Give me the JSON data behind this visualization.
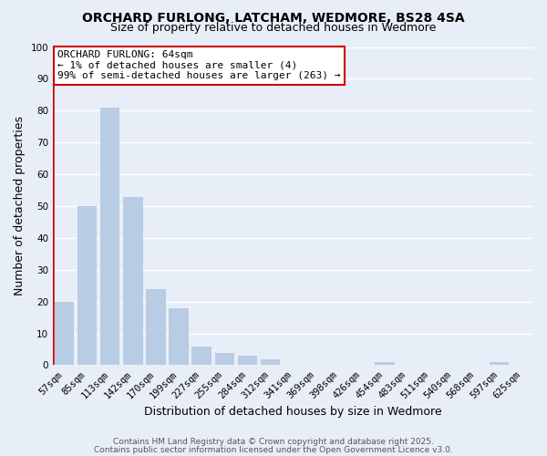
{
  "title": "ORCHARD FURLONG, LATCHAM, WEDMORE, BS28 4SA",
  "subtitle": "Size of property relative to detached houses in Wedmore",
  "xlabel": "Distribution of detached houses by size in Wedmore",
  "ylabel": "Number of detached properties",
  "categories": [
    "57sqm",
    "85sqm",
    "113sqm",
    "142sqm",
    "170sqm",
    "199sqm",
    "227sqm",
    "255sqm",
    "284sqm",
    "312sqm",
    "341sqm",
    "369sqm",
    "398sqm",
    "426sqm",
    "454sqm",
    "483sqm",
    "511sqm",
    "540sqm",
    "568sqm",
    "597sqm",
    "625sqm"
  ],
  "values": [
    20,
    50,
    81,
    53,
    24,
    18,
    6,
    4,
    3,
    2,
    0,
    0,
    0,
    0,
    1,
    0,
    0,
    0,
    0,
    1,
    0
  ],
  "bar_color": "#b8cce4",
  "highlight_color": "#cc0000",
  "ylim": [
    0,
    100
  ],
  "yticks": [
    0,
    10,
    20,
    30,
    40,
    50,
    60,
    70,
    80,
    90,
    100
  ],
  "annotation_title": "ORCHARD FURLONG: 64sqm",
  "annotation_line1": "← 1% of detached houses are smaller (4)",
  "annotation_line2": "99% of semi-detached houses are larger (263) →",
  "annotation_box_color": "#ffffff",
  "annotation_box_edge": "#cc0000",
  "footer_line1": "Contains HM Land Registry data © Crown copyright and database right 2025.",
  "footer_line2": "Contains public sector information licensed under the Open Government Licence v3.0.",
  "background_color": "#e8eef8",
  "grid_color": "#ffffff",
  "title_fontsize": 10,
  "subtitle_fontsize": 9,
  "axis_label_fontsize": 9,
  "tick_fontsize": 7.5,
  "footer_fontsize": 6.5,
  "annotation_fontsize": 8
}
